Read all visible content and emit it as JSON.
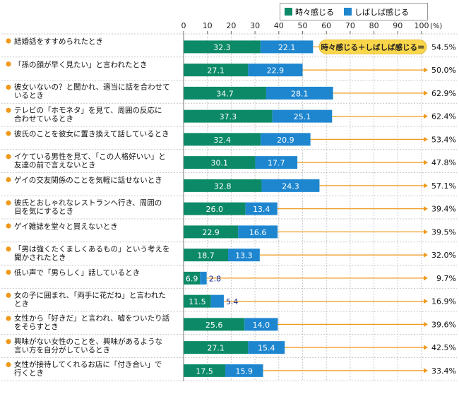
{
  "legend": {
    "series1": "時々感じる",
    "series2": "しばしば感じる"
  },
  "axis_unit": "(%)",
  "sum_callout": "時々感じる＋しばしば感じる＝",
  "colors": {
    "series1": "#0c8a68",
    "series2": "#1e86cf",
    "line": "#ef9a1c",
    "bullet": "#ef9a1c",
    "callout_bg": "#f9d64a",
    "series2_label_outside": "#1a2a8a"
  },
  "chart_data": {
    "type": "bar",
    "orientation": "horizontal",
    "stacked": true,
    "xlim": [
      0,
      100
    ],
    "xticks": [
      0,
      10,
      20,
      30,
      40,
      50,
      60,
      70,
      80,
      90,
      100
    ],
    "grid": true,
    "legend_position": "top-right",
    "categories": [
      "結婚話をすすめられたとき",
      "「孫の顔が早く見たい」と言われたとき",
      "彼女いないの？と聞かれ、適当に話を合わせて\nいるとき",
      "テレビの「ホモネタ」を見て、周囲の反応に\n合わせているとき",
      "彼氏のことを彼女に置き換えて話しているとき",
      "イケている男性を見て、「この人格好いい」と\n友達の前で言えないとき",
      "ゲイの交友関係のことを気軽に話せないとき",
      "彼氏とおしゃれなレストランへ行き、周囲の\n目を気にするとき",
      "ゲイ雑誌を堂々と買えないとき",
      "「男は強くたくましくあるもの」という考えを\n聞かされたとき",
      "低い声で「男らしく」話しているとき",
      "女の子に囲まれ、「両手に花だね」と言われた\nとき",
      "女性から「好きだ」と言われ、嘘をついたり話\nをそらすとき",
      "興味がない女性のことを、興味があるような\n言い方を自分がしているとき",
      "女性が接待してくれるお店に「付き合い」で\n行くとき"
    ],
    "series": [
      {
        "name": "時々感じる",
        "values": [
          32.3,
          27.1,
          34.7,
          37.3,
          32.4,
          30.1,
          32.8,
          26.0,
          22.9,
          18.7,
          6.9,
          11.5,
          25.6,
          27.1,
          17.5
        ]
      },
      {
        "name": "しばしば感じる",
        "values": [
          22.1,
          22.9,
          28.1,
          25.1,
          20.9,
          17.7,
          24.3,
          13.4,
          16.6,
          13.3,
          2.8,
          5.4,
          14.0,
          15.4,
          15.9
        ]
      }
    ],
    "totals": [
      54.5,
      50.0,
      62.9,
      62.4,
      53.4,
      47.8,
      57.1,
      39.4,
      39.5,
      32.0,
      9.7,
      16.9,
      39.6,
      42.5,
      33.4
    ],
    "value_labels_1": [
      "32.3",
      "27.1",
      "34.7",
      "37.3",
      "32.4",
      "30.1",
      "32.8",
      "26.0",
      "22.9",
      "18.7",
      "6.9",
      "11.5",
      "25.6",
      "27.1",
      "17.5"
    ],
    "value_labels_2": [
      "22.1",
      "22.9",
      "28.1",
      "25.1",
      "20.9",
      "17.7",
      "24.3",
      "13.4",
      "16.6",
      "13.3",
      "2.8",
      "5.4",
      "14.0",
      "15.4",
      "15.9"
    ],
    "total_labels": [
      "54.5%",
      "50.0%",
      "62.9%",
      "62.4%",
      "53.4%",
      "47.8%",
      "57.1%",
      "39.4%",
      "39.5%",
      "32.0%",
      "9.7%",
      "16.9%",
      "39.6%",
      "42.5%",
      "33.4%"
    ]
  }
}
